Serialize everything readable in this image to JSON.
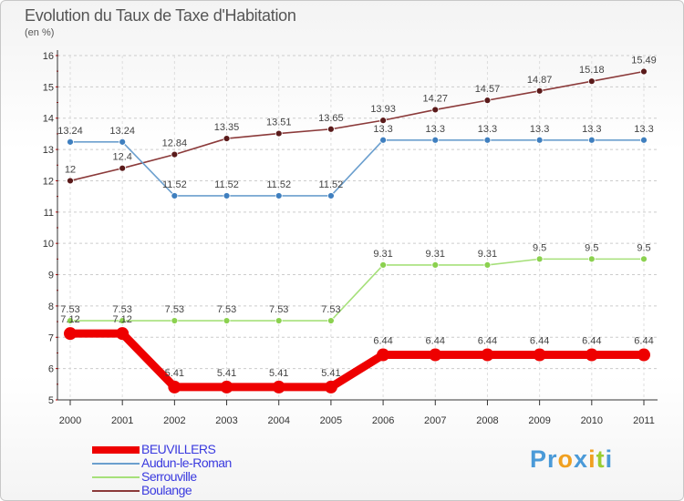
{
  "chart_data": {
    "type": "line",
    "title": "Evolution du Taux de Taxe d'Habitation",
    "subtitle": "(en %)",
    "xlabel": "",
    "ylabel": "",
    "ylim": [
      5,
      16
    ],
    "yticks": [
      5,
      6,
      7,
      8,
      9,
      10,
      11,
      12,
      13,
      14,
      15,
      16
    ],
    "categories": [
      "2000",
      "2001",
      "2002",
      "2003",
      "2004",
      "2005",
      "2006",
      "2007",
      "2008",
      "2009",
      "2010",
      "2011"
    ],
    "grid": "horizontal-dashed",
    "legend": "bottom-left",
    "series": [
      {
        "name": "BEUVILLERS",
        "color": "#ee0000",
        "marker": "#ee0000",
        "labels": "above",
        "values": [
          7.12,
          7.12,
          5.41,
          5.41,
          5.41,
          5.41,
          6.44,
          6.44,
          6.44,
          6.44,
          6.44,
          6.44
        ],
        "value_labels": [
          "7.12",
          "7.12",
          "5.41",
          "5.41",
          "5.41",
          "5.41",
          "6.44",
          "6.44",
          "6.44",
          "6.44",
          "6.44",
          "6.44"
        ]
      },
      {
        "name": "Audun-le-Roman",
        "color": "#6b9fce",
        "marker": "#3f7fbf",
        "labels": "above",
        "values": [
          13.24,
          13.24,
          11.52,
          11.52,
          11.52,
          11.52,
          13.3,
          13.3,
          13.3,
          13.3,
          13.3,
          13.3
        ],
        "value_labels": [
          "13.24",
          "13.24",
          "11.52",
          "11.52",
          "11.52",
          "11.52",
          "13.3",
          "13.3",
          "13.3",
          "13.3",
          "13.3",
          "13.3"
        ]
      },
      {
        "name": "Serrouville",
        "color": "#a6e07a",
        "marker": "#8bd14f",
        "labels": "above",
        "values": [
          7.53,
          7.53,
          7.53,
          7.53,
          7.53,
          7.53,
          9.31,
          9.31,
          9.31,
          9.5,
          9.5,
          9.5
        ],
        "value_labels": [
          "7.53",
          "7.53",
          "7.53",
          "7.53",
          "7.53",
          "7.53",
          "9.31",
          "9.31",
          "9.31",
          "9.5",
          "9.5",
          "9.5"
        ]
      },
      {
        "name": "Boulange",
        "color": "#8b3a3a",
        "marker": "#5a1a1a",
        "labels": "above",
        "values": [
          12,
          12.4,
          12.84,
          13.35,
          13.51,
          13.65,
          13.93,
          14.27,
          14.57,
          14.87,
          15.18,
          15.49
        ],
        "value_labels": [
          "12",
          "12.4",
          "12.84",
          "13.35",
          "13.51",
          "13.65",
          "13.93",
          "14.27",
          "14.57",
          "14.87",
          "15.18",
          "15.49"
        ]
      }
    ]
  },
  "legend": {
    "items": [
      {
        "label": "BEUVILLERS",
        "color": "#ee0000"
      },
      {
        "label": "Audun-le-Roman",
        "color": "#6b9fce"
      },
      {
        "label": "Serrouville",
        "color": "#a6e07a"
      },
      {
        "label": "Boulange",
        "color": "#8b3a3a"
      }
    ],
    "text_color": "#3a3adf"
  },
  "brand": {
    "letters": [
      "P",
      "r",
      "o",
      "x",
      "i",
      "t",
      "i"
    ],
    "colors": [
      "#4a9ad8",
      "#4a9ad8",
      "#f0a020",
      "#4a9ad8",
      "#f0a020",
      "#9acd32",
      "#4a9ad8"
    ]
  }
}
